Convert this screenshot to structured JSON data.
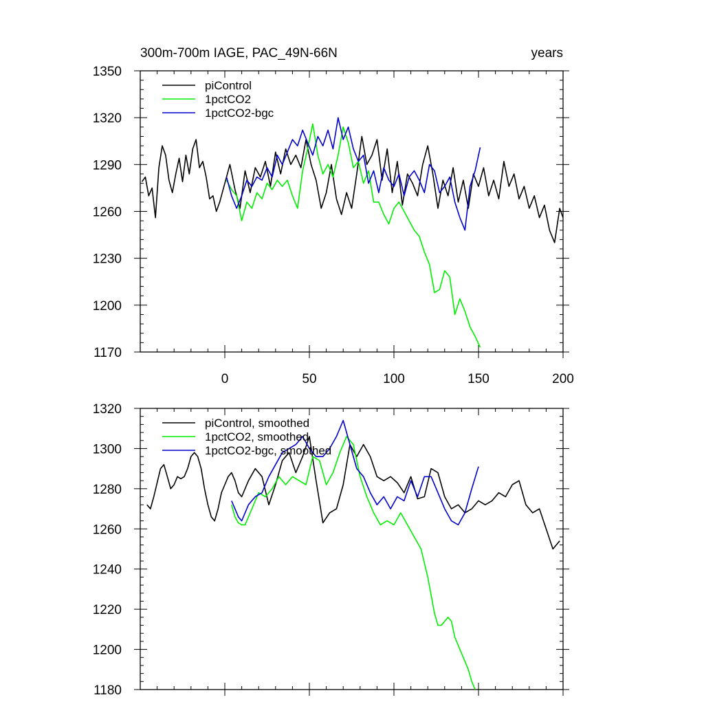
{
  "figure": {
    "title_left": "300m-700m IAGE, PAC_49N-66N",
    "title_right": "years"
  },
  "chart_data": [
    {
      "type": "line",
      "xlim": [
        -50,
        200
      ],
      "ylim": [
        1170,
        1350
      ],
      "x_ticks": [
        0,
        50,
        100,
        150,
        200
      ],
      "y_ticks": [
        1170,
        1200,
        1230,
        1260,
        1290,
        1320,
        1350
      ],
      "x_tick_labels": [
        "0",
        "50",
        "100",
        "150",
        "200"
      ],
      "y_tick_labels": [
        "1170",
        "1200",
        "1230",
        "1260",
        "1290",
        "1320",
        "1350"
      ],
      "legend_position": "top-left",
      "series": [
        {
          "name": "piControl",
          "color": "#000000",
          "x": [
            -49,
            -47,
            -45,
            -43,
            -41,
            -39,
            -37,
            -35,
            -33,
            -31,
            -29,
            -27,
            -25,
            -23,
            -21,
            -19,
            -17,
            -15,
            -13,
            -11,
            -9,
            -7,
            -5,
            -3,
            0,
            3,
            6,
            9,
            12,
            15,
            18,
            21,
            24,
            27,
            30,
            33,
            36,
            39,
            42,
            45,
            48,
            51,
            54,
            57,
            60,
            63,
            66,
            69,
            72,
            75,
            78,
            81,
            84,
            87,
            90,
            93,
            96,
            99,
            102,
            105,
            108,
            111,
            114,
            117,
            120,
            123,
            126,
            129,
            132,
            135,
            138,
            141,
            144,
            147,
            150,
            153,
            156,
            159,
            162,
            165,
            168,
            171,
            174,
            177,
            180,
            183,
            186,
            189,
            192,
            195,
            198,
            200
          ],
          "values": [
            1279,
            1282,
            1270,
            1275,
            1256,
            1288,
            1302,
            1296,
            1280,
            1272,
            1284,
            1294,
            1279,
            1296,
            1284,
            1300,
            1306,
            1288,
            1292,
            1282,
            1268,
            1270,
            1260,
            1266,
            1278,
            1290,
            1274,
            1262,
            1286,
            1272,
            1288,
            1282,
            1292,
            1276,
            1298,
            1284,
            1300,
            1290,
            1296,
            1288,
            1306,
            1290,
            1280,
            1262,
            1272,
            1290,
            1268,
            1258,
            1272,
            1262,
            1284,
            1308,
            1290,
            1296,
            1306,
            1280,
            1300,
            1272,
            1292,
            1264,
            1284,
            1278,
            1270,
            1290,
            1302,
            1284,
            1262,
            1280,
            1270,
            1288,
            1266,
            1280,
            1262,
            1284,
            1276,
            1288,
            1270,
            1280,
            1268,
            1292,
            1276,
            1284,
            1268,
            1276,
            1262,
            1270,
            1256,
            1264,
            1248,
            1240,
            1262,
            1256
          ]
        },
        {
          "name": "1pctCO2",
          "color": "#00ee00",
          "x": [
            1,
            4,
            7,
            10,
            13,
            16,
            19,
            22,
            25,
            28,
            31,
            34,
            37,
            40,
            43,
            46,
            49,
            52,
            55,
            58,
            61,
            64,
            67,
            70,
            73,
            76,
            79,
            82,
            85,
            88,
            91,
            94,
            97,
            100,
            103,
            106,
            109,
            112,
            115,
            118,
            121,
            124,
            127,
            130,
            133,
            136,
            139,
            142,
            145,
            148,
            151
          ],
          "values": [
            1280,
            1274,
            1270,
            1254,
            1266,
            1262,
            1272,
            1268,
            1278,
            1274,
            1280,
            1276,
            1280,
            1270,
            1262,
            1286,
            1300,
            1316,
            1296,
            1284,
            1290,
            1282,
            1296,
            1314,
            1304,
            1288,
            1292,
            1278,
            1286,
            1266,
            1266,
            1258,
            1252,
            1262,
            1266,
            1260,
            1254,
            1248,
            1244,
            1234,
            1226,
            1208,
            1210,
            1222,
            1218,
            1194,
            1204,
            1196,
            1186,
            1180,
            1173
          ]
        },
        {
          "name": "1pctCO2-bgc",
          "color": "#0000cc",
          "x": [
            1,
            4,
            7,
            10,
            13,
            16,
            19,
            22,
            25,
            28,
            31,
            34,
            37,
            40,
            43,
            46,
            49,
            52,
            55,
            58,
            61,
            64,
            67,
            70,
            73,
            76,
            79,
            82,
            85,
            88,
            91,
            94,
            97,
            100,
            103,
            106,
            109,
            112,
            115,
            118,
            121,
            124,
            127,
            130,
            133,
            136,
            139,
            142,
            145,
            148,
            151
          ],
          "values": [
            1282,
            1270,
            1262,
            1270,
            1280,
            1276,
            1282,
            1280,
            1288,
            1282,
            1296,
            1290,
            1298,
            1306,
            1302,
            1312,
            1304,
            1296,
            1308,
            1302,
            1312,
            1300,
            1320,
            1306,
            1314,
            1300,
            1292,
            1296,
            1278,
            1286,
            1272,
            1288,
            1280,
            1276,
            1284,
            1270,
            1282,
            1286,
            1280,
            1272,
            1290,
            1286,
            1272,
            1276,
            1282,
            1266,
            1256,
            1248,
            1276,
            1286,
            1301
          ]
        }
      ]
    },
    {
      "type": "line",
      "xlim": [
        -50,
        200
      ],
      "ylim": [
        1180,
        1320
      ],
      "x_ticks": [
        0,
        50,
        100,
        150,
        200
      ],
      "y_ticks": [
        1180,
        1200,
        1220,
        1240,
        1260,
        1280,
        1300,
        1320
      ],
      "y_tick_labels": [
        "1180",
        "1200",
        "1220",
        "1240",
        "1260",
        "1280",
        "1300",
        "1320"
      ],
      "legend_position": "top-left",
      "series": [
        {
          "name": "piControl, smoothed",
          "color": "#000000",
          "x": [
            -46,
            -44,
            -42,
            -40,
            -38,
            -36,
            -34,
            -32,
            -30,
            -28,
            -26,
            -24,
            -22,
            -20,
            -18,
            -16,
            -14,
            -12,
            -10,
            -8,
            -6,
            -4,
            -2,
            0,
            2,
            4,
            6,
            8,
            10,
            14,
            18,
            22,
            26,
            30,
            34,
            38,
            42,
            46,
            50,
            54,
            58,
            62,
            66,
            70,
            74,
            78,
            82,
            86,
            90,
            94,
            98,
            102,
            106,
            110,
            114,
            118,
            122,
            126,
            130,
            134,
            138,
            142,
            146,
            150,
            154,
            158,
            162,
            166,
            170,
            174,
            178,
            182,
            186,
            190,
            194,
            198
          ],
          "values": [
            1272,
            1270,
            1276,
            1283,
            1290,
            1292,
            1286,
            1280,
            1282,
            1286,
            1285,
            1286,
            1290,
            1296,
            1298,
            1296,
            1290,
            1280,
            1272,
            1266,
            1264,
            1270,
            1278,
            1282,
            1286,
            1288,
            1284,
            1278,
            1276,
            1284,
            1290,
            1286,
            1272,
            1282,
            1294,
            1298,
            1288,
            1296,
            1306,
            1284,
            1263,
            1268,
            1270,
            1282,
            1302,
            1296,
            1302,
            1296,
            1286,
            1284,
            1286,
            1283,
            1278,
            1286,
            1275,
            1276,
            1290,
            1288,
            1276,
            1270,
            1272,
            1268,
            1270,
            1274,
            1272,
            1274,
            1278,
            1276,
            1282,
            1284,
            1272,
            1268,
            1270,
            1260,
            1250,
            1254
          ]
        },
        {
          "name": "1pctCO2, smoothed",
          "color": "#00ee00",
          "x": [
            4,
            6,
            8,
            10,
            12,
            14,
            16,
            18,
            20,
            24,
            28,
            32,
            36,
            40,
            44,
            48,
            52,
            56,
            60,
            64,
            68,
            72,
            76,
            80,
            84,
            88,
            92,
            96,
            100,
            104,
            108,
            112,
            116,
            120,
            124,
            126,
            128,
            130,
            132,
            134,
            136,
            138,
            140,
            142,
            144,
            146,
            148
          ],
          "values": [
            1272,
            1266,
            1263,
            1262,
            1262,
            1266,
            1270,
            1274,
            1278,
            1276,
            1280,
            1286,
            1282,
            1286,
            1284,
            1282,
            1296,
            1294,
            1282,
            1288,
            1298,
            1306,
            1302,
            1286,
            1276,
            1268,
            1262,
            1264,
            1262,
            1268,
            1262,
            1256,
            1250,
            1236,
            1218,
            1212,
            1212,
            1214,
            1216,
            1214,
            1206,
            1202,
            1198,
            1194,
            1190,
            1184,
            1180
          ]
        },
        {
          "name": "1pctCO2-bgc, smoothed",
          "color": "#0000cc",
          "x": [
            4,
            6,
            8,
            10,
            14,
            18,
            22,
            26,
            30,
            34,
            38,
            42,
            46,
            50,
            54,
            58,
            62,
            66,
            70,
            74,
            78,
            82,
            86,
            90,
            94,
            98,
            102,
            106,
            110,
            114,
            118,
            122,
            126,
            130,
            134,
            138,
            142,
            146,
            150
          ],
          "values": [
            1274,
            1270,
            1266,
            1264,
            1272,
            1276,
            1278,
            1286,
            1292,
            1298,
            1300,
            1302,
            1306,
            1300,
            1296,
            1296,
            1300,
            1306,
            1314,
            1302,
            1290,
            1286,
            1278,
            1272,
            1276,
            1270,
            1276,
            1274,
            1284,
            1276,
            1286,
            1286,
            1278,
            1270,
            1264,
            1262,
            1268,
            1280,
            1291
          ]
        }
      ]
    }
  ]
}
